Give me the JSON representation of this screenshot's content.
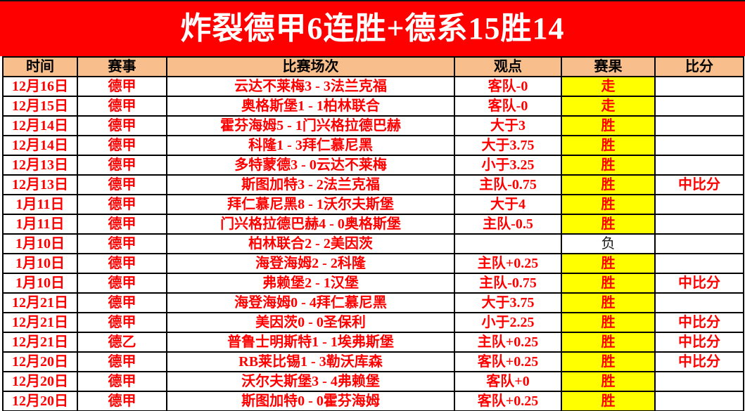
{
  "banner": {
    "title": "炸裂德甲6连胜+德系15胜14"
  },
  "table": {
    "headers": {
      "time": "时间",
      "league": "赛事",
      "match": "比赛场次",
      "view": "观点",
      "result": "赛果",
      "score": "比分"
    },
    "rows": [
      {
        "date": "12月16日",
        "league": "德甲",
        "match": "云达不莱梅3 - 3法兰克福",
        "view": "客队-0",
        "result": "走",
        "score": "",
        "result_highlight": true
      },
      {
        "date": "12月15日",
        "league": "德甲",
        "match": "奥格斯堡1 - 1柏林联合",
        "view": "客队-0",
        "result": "走",
        "score": "",
        "result_highlight": true
      },
      {
        "date": "12月14日",
        "league": "德甲",
        "match": "霍芬海姆5 - 1门兴格拉德巴赫",
        "view": "大于3",
        "result": "胜",
        "score": "",
        "result_highlight": true
      },
      {
        "date": "12月14日",
        "league": "德甲",
        "match": "科隆1 - 3拜仁慕尼黑",
        "view": "大于3.75",
        "result": "胜",
        "score": "",
        "result_highlight": true
      },
      {
        "date": "12月13日",
        "league": "德甲",
        "match": "多特蒙德3 - 0云达不莱梅",
        "view": "小于3.25",
        "result": "胜",
        "score": "",
        "result_highlight": true
      },
      {
        "date": "12月13日",
        "league": "德甲",
        "match": "斯图加特3 - 2法兰克福",
        "view": "主队-0.75",
        "result": "胜",
        "score": "中比分",
        "result_highlight": true
      },
      {
        "date": "1月11日",
        "league": "德甲",
        "match": "拜仁慕尼黑8 - 1沃尔夫斯堡",
        "view": "大于4",
        "result": "胜",
        "score": "",
        "result_highlight": true
      },
      {
        "date": "1月11日",
        "league": "德甲",
        "match": "门兴格拉德巴赫4 - 0奥格斯堡",
        "view": "主队-0.5",
        "result": "胜",
        "score": "",
        "result_highlight": true
      },
      {
        "date": "1月10日",
        "league": "德甲",
        "match": "柏林联合2 - 2美因茨",
        "view": "",
        "result": "负",
        "score": "",
        "result_highlight": false
      },
      {
        "date": "1月10日",
        "league": "德甲",
        "match": "海登海姆2 - 2科隆",
        "view": "主队+0.25",
        "result": "胜",
        "score": "",
        "result_highlight": true
      },
      {
        "date": "1月10日",
        "league": "德甲",
        "match": "弗赖堡2 - 1汉堡",
        "view": "主队-0.75",
        "result": "胜",
        "score": "中比分",
        "result_highlight": true
      },
      {
        "date": "12月21日",
        "league": "德甲",
        "match": "海登海姆0 - 4拜仁慕尼黑",
        "view": "大于3.75",
        "result": "胜",
        "score": "",
        "result_highlight": true
      },
      {
        "date": "12月21日",
        "league": "德甲",
        "match": "美因茨0 - 0圣保利",
        "view": "小于2.25",
        "result": "胜",
        "score": "中比分",
        "result_highlight": true
      },
      {
        "date": "12月21日",
        "league": "德乙",
        "match": "普鲁士明斯特1 - 1埃弗斯堡",
        "view": "主队+0.25",
        "result": "胜",
        "score": "中比分",
        "result_highlight": true
      },
      {
        "date": "12月20日",
        "league": "德甲",
        "match": "RB莱比锡1 - 3勒沃库森",
        "view": "客队+0.25",
        "result": "胜",
        "score": "中比分",
        "result_highlight": true
      },
      {
        "date": "12月20日",
        "league": "德甲",
        "match": "沃尔夫斯堡3 - 4弗赖堡",
        "view": "客队+0",
        "result": "胜",
        "score": "",
        "result_highlight": true
      },
      {
        "date": "12月20日",
        "league": "德甲",
        "match": "斯图加特0 - 0霍芬海姆",
        "view": "客队+0.25",
        "result": "胜",
        "score": "",
        "result_highlight": true
      }
    ]
  },
  "colors": {
    "banner_bg": "#FF0000",
    "banner_text": "#FFFFFF",
    "header_bg": "#F8BE8C",
    "result_highlight_bg": "#FFFF00",
    "text_red": "#FF0000",
    "loss_text": "#1A1A1A"
  }
}
